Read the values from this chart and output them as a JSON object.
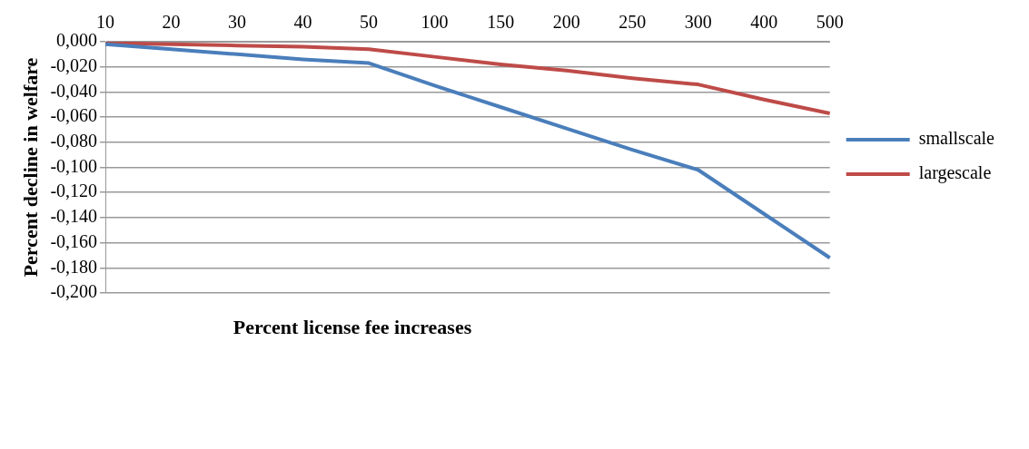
{
  "chart_data": {
    "type": "line",
    "xlabel": "Percent license fee increases",
    "ylabel": "Percent decline in welfare",
    "categories": [
      "10",
      "20",
      "30",
      "40",
      "50",
      "100",
      "150",
      "200",
      "250",
      "300",
      "400",
      "500"
    ],
    "series": [
      {
        "name": "smallscale",
        "color": "#4a7ebb",
        "values": [
          -0.002,
          -0.006,
          -0.01,
          -0.014,
          -0.017,
          -0.035,
          -0.052,
          -0.069,
          -0.086,
          -0.102,
          -0.137,
          -0.172
        ]
      },
      {
        "name": "largescale",
        "color": "#be4b48",
        "values": [
          -0.001,
          -0.002,
          -0.003,
          -0.004,
          -0.006,
          -0.012,
          -0.018,
          -0.023,
          -0.029,
          -0.034,
          -0.046,
          -0.057
        ]
      }
    ],
    "ylim": [
      -0.2,
      0
    ],
    "yticks": [
      {
        "value": 0,
        "label": "0,000"
      },
      {
        "value": -0.02,
        "label": "-0,020"
      },
      {
        "value": -0.04,
        "label": "-0,040"
      },
      {
        "value": -0.06,
        "label": "-0,060"
      },
      {
        "value": -0.08,
        "label": "-0,080"
      },
      {
        "value": -0.1,
        "label": "-0,100"
      },
      {
        "value": -0.12,
        "label": "-0,120"
      },
      {
        "value": -0.14,
        "label": "-0,140"
      },
      {
        "value": -0.16,
        "label": "-0,160"
      },
      {
        "value": -0.18,
        "label": "-0,180"
      },
      {
        "value": -0.2,
        "label": "-0,200"
      }
    ],
    "grid": "y",
    "legend": "right",
    "marker": "none",
    "line_style": "solid"
  }
}
